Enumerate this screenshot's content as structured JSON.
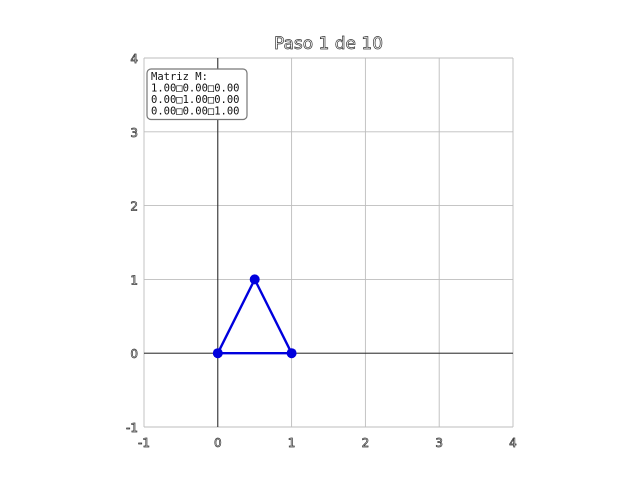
{
  "chart_data": {
    "type": "line",
    "title": "Paso 1 de 10",
    "xlabel": "",
    "ylabel": "",
    "xlim": [
      -1,
      4
    ],
    "ylim": [
      -1,
      4
    ],
    "x_ticks": [
      "-1",
      "0",
      "1",
      "2",
      "3",
      "4"
    ],
    "y_ticks": [
      "-1",
      "0",
      "1",
      "2",
      "3",
      "4"
    ],
    "grid": true,
    "axes_lines": {
      "x": 0,
      "y": 0
    },
    "series": [
      {
        "color": "#0000dd",
        "closed": true,
        "markers": "circle",
        "points": [
          [
            0,
            0
          ],
          [
            1,
            0
          ],
          [
            0.5,
            1
          ]
        ]
      }
    ],
    "annotation": {
      "placement": "top-left",
      "lines": [
        "Matriz M:",
        "1.00□0.00□0.00",
        "0.00□1.00□0.00",
        "0.00□0.00□1.00"
      ]
    }
  }
}
